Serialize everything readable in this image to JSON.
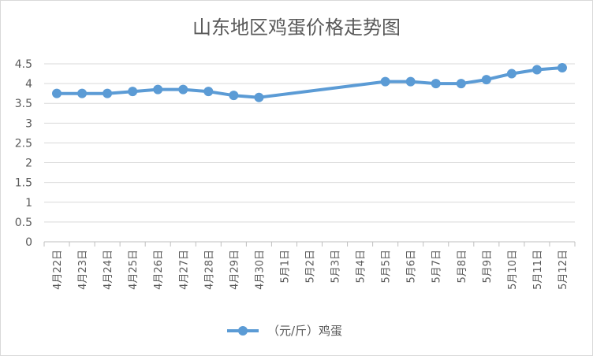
{
  "chart_data": {
    "type": "line",
    "title": "山东地区鸡蛋价格走势图",
    "categories": [
      "4月22日",
      "4月23日",
      "4月24日",
      "4月25日",
      "4月26日",
      "4月27日",
      "4月28日",
      "4月29日",
      "4月30日",
      "5月1日",
      "5月2日",
      "5月3日",
      "5月4日",
      "5月5日",
      "5月6日",
      "5月7日",
      "5月8日",
      "5月9日",
      "5月10日",
      "5月11日",
      "5月12日"
    ],
    "series": [
      {
        "name": "（元/斤）鸡蛋",
        "color": "#5b9bd5",
        "values": [
          3.75,
          3.75,
          3.75,
          3.8,
          3.85,
          3.85,
          3.8,
          3.7,
          3.65,
          null,
          null,
          null,
          null,
          4.05,
          4.05,
          4.0,
          4.0,
          4.1,
          4.25,
          4.35,
          4.4
        ]
      }
    ],
    "ylim": [
      0,
      4.5
    ],
    "yticks": [
      "0",
      "0.5",
      "1",
      "1.5",
      "2",
      "2.5",
      "3",
      "3.5",
      "4",
      "4.5"
    ],
    "xlabel": "",
    "ylabel": "",
    "grid": true,
    "gap_handling": "connected",
    "legend_position": "bottom"
  }
}
